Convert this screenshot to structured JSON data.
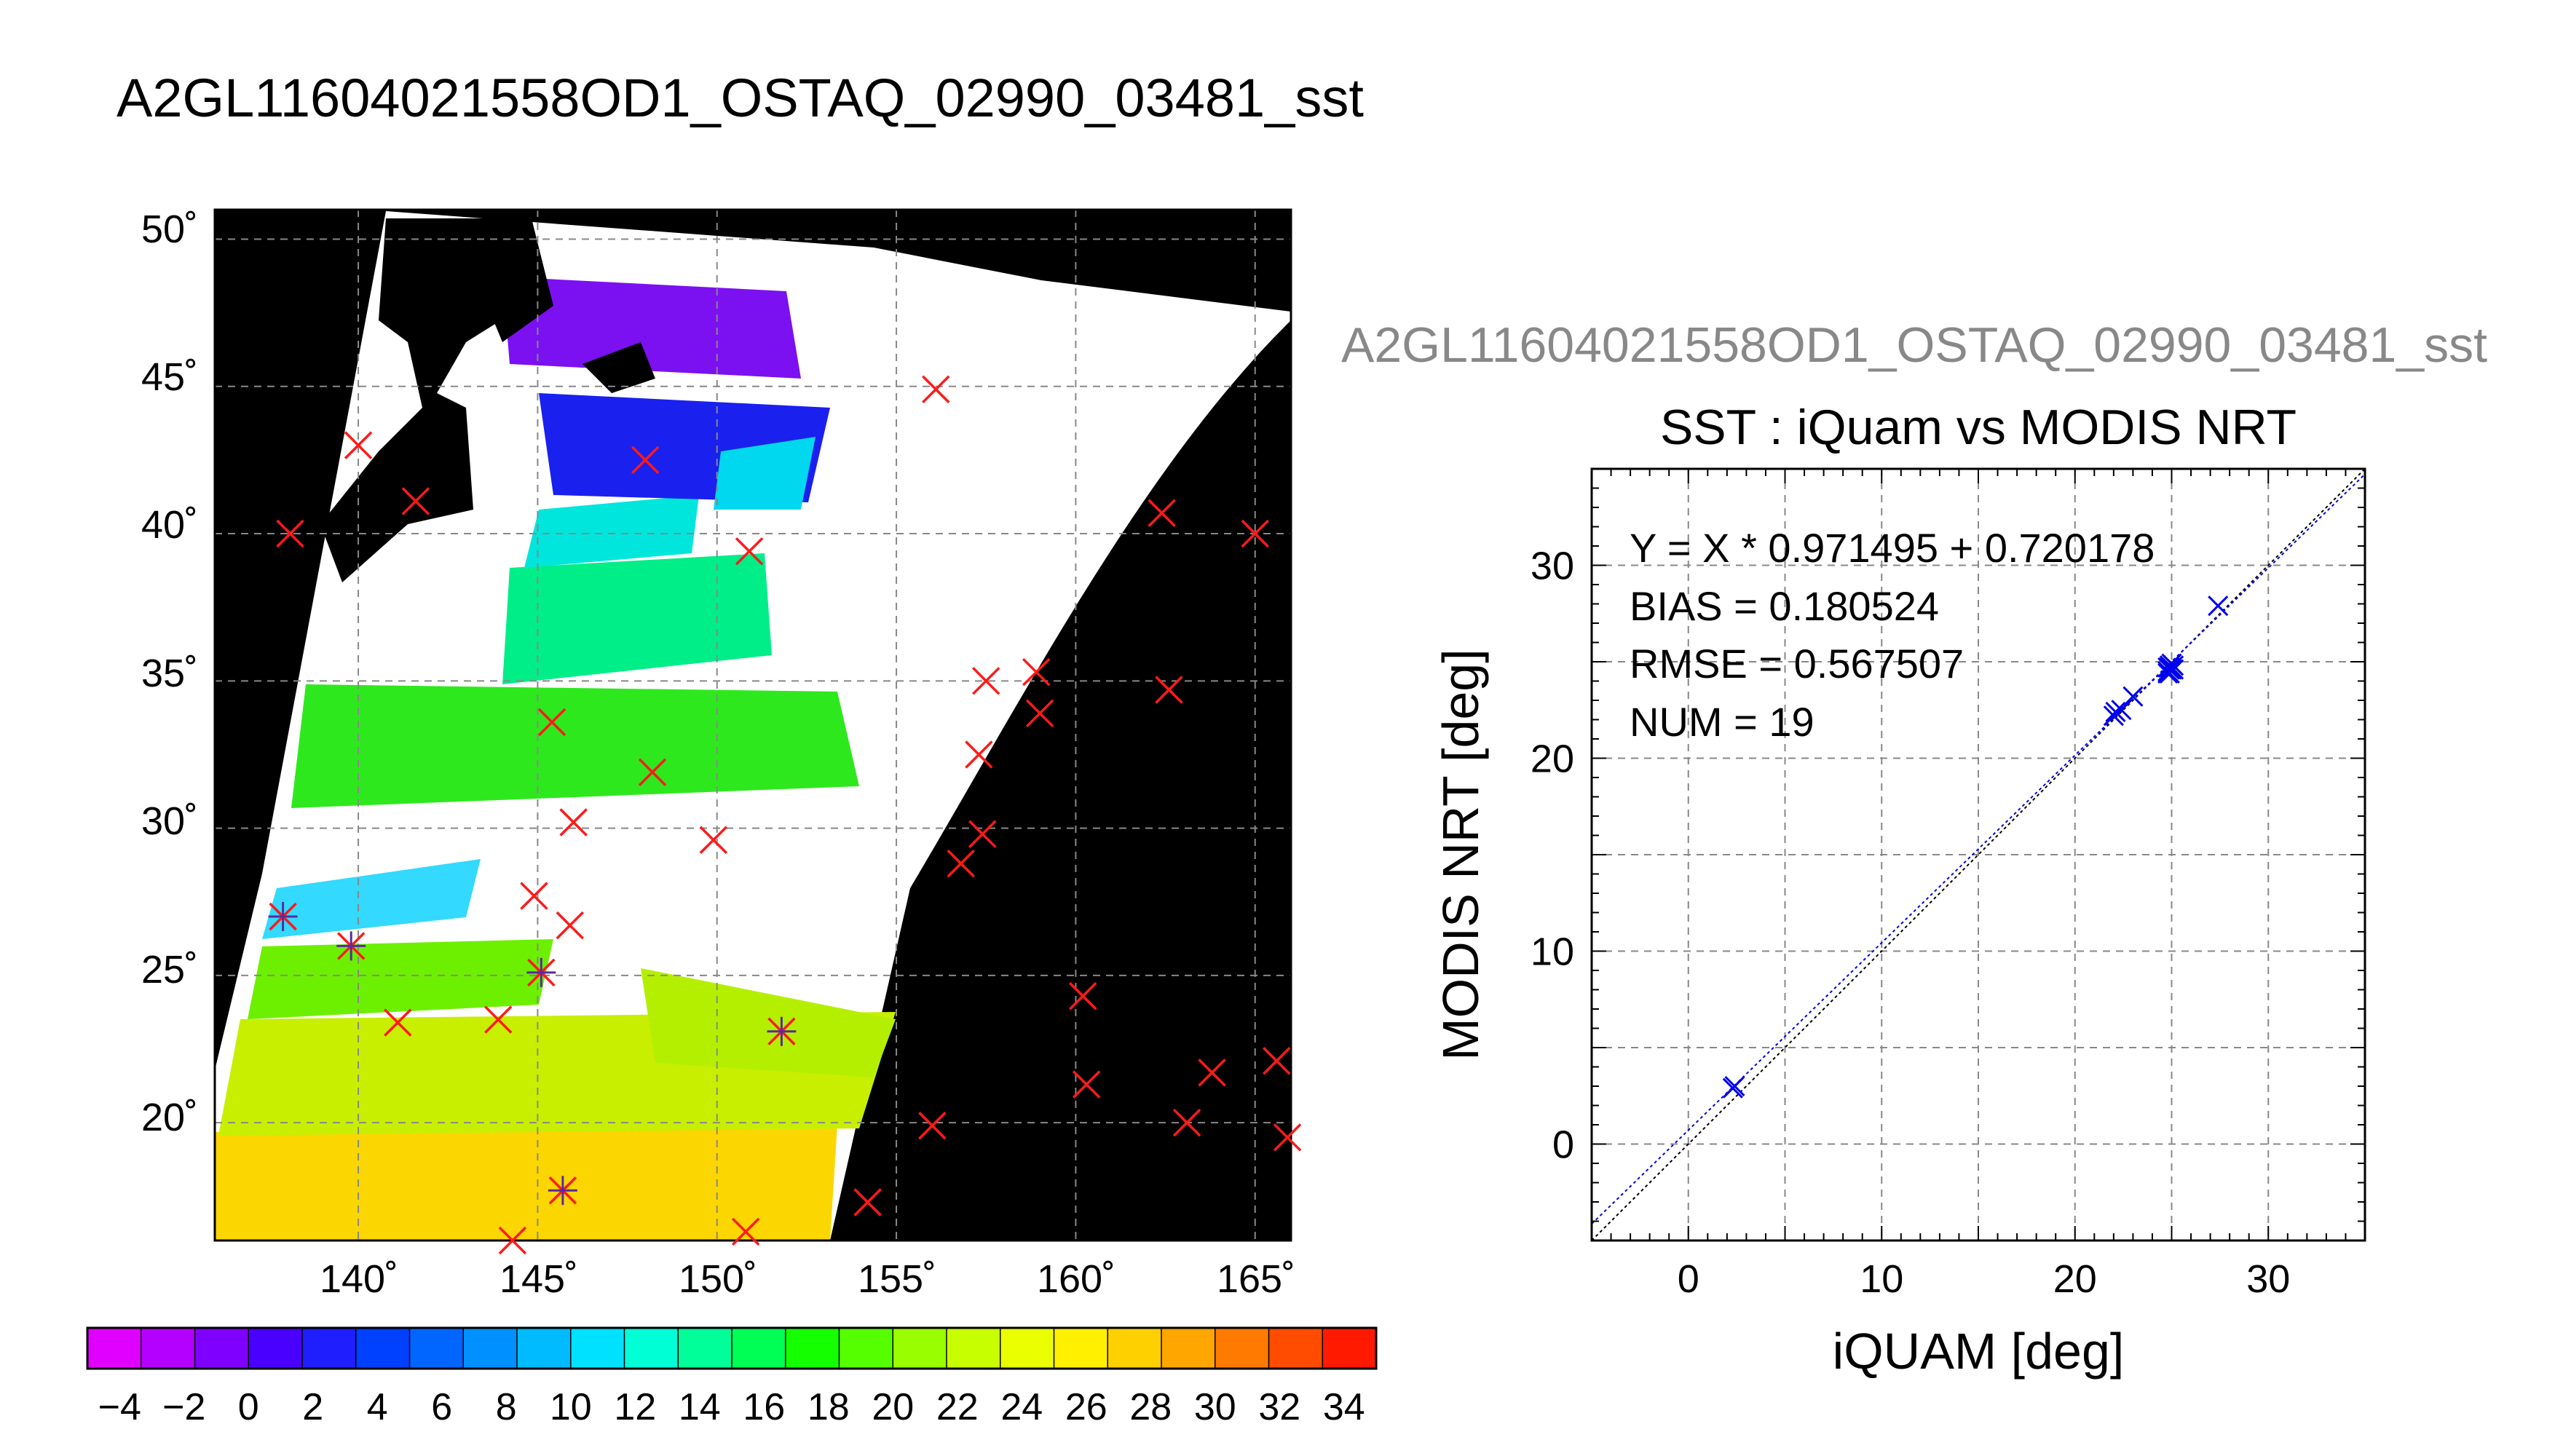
{
  "page_title": "A2GL11604021558OD1_OSTAQ_02990_03481_sst",
  "chart_data": [
    {
      "type": "map",
      "title": "A2GL11604021558OD1_OSTAQ_02990_03481_sst",
      "lon_range": [
        136,
        166
      ],
      "lat_range": [
        16,
        51
      ],
      "lon_ticks": [
        140,
        145,
        150,
        155,
        160,
        165
      ],
      "lat_ticks": [
        20,
        25,
        30,
        35,
        40,
        45,
        50
      ],
      "lon_tick_labels": [
        "140˚",
        "145˚",
        "150˚",
        "155˚",
        "160˚",
        "165˚"
      ],
      "lat_tick_labels": [
        "20˚",
        "25˚",
        "30˚",
        "35˚",
        "40˚",
        "45˚",
        "50˚"
      ],
      "grid": true,
      "colorbar": {
        "min": -5,
        "max": 35,
        "labels": [
          "−4",
          "−2",
          "0",
          "2",
          "4",
          "6",
          "8",
          "10",
          "12",
          "14",
          "16",
          "18",
          "20",
          "22",
          "24",
          "26",
          "28",
          "30",
          "32",
          "34"
        ],
        "label_values": [
          -4,
          -2,
          0,
          2,
          4,
          6,
          8,
          10,
          12,
          14,
          16,
          18,
          20,
          22,
          24,
          26,
          28,
          30,
          32,
          34
        ],
        "colors": [
          "#e000ff",
          "#b300ff",
          "#8000ff",
          "#4a00ff",
          "#1e1eff",
          "#0040ff",
          "#0066ff",
          "#0090ff",
          "#00bbff",
          "#00e0ff",
          "#00ffd5",
          "#00ff99",
          "#00ff55",
          "#14ff00",
          "#55ff00",
          "#99ff00",
          "#c8ff00",
          "#eaff00",
          "#fff000",
          "#ffd000",
          "#ffa600",
          "#ff7a00",
          "#ff4c00",
          "#ff1a00"
        ]
      },
      "iquam_points": [
        {
          "lon": 140.0,
          "lat": 43.0
        },
        {
          "lon": 141.6,
          "lat": 41.1
        },
        {
          "lon": 138.1,
          "lat": 40.0
        },
        {
          "lon": 156.1,
          "lat": 44.9
        },
        {
          "lon": 148.0,
          "lat": 42.5
        },
        {
          "lon": 150.9,
          "lat": 39.4
        },
        {
          "lon": 162.4,
          "lat": 40.7
        },
        {
          "lon": 165.0,
          "lat": 40.0
        },
        {
          "lon": 157.5,
          "lat": 35.0
        },
        {
          "lon": 158.9,
          "lat": 35.3
        },
        {
          "lon": 159.0,
          "lat": 33.9
        },
        {
          "lon": 162.6,
          "lat": 34.7
        },
        {
          "lon": 145.4,
          "lat": 33.6
        },
        {
          "lon": 148.2,
          "lat": 31.9
        },
        {
          "lon": 157.3,
          "lat": 32.5
        },
        {
          "lon": 146.0,
          "lat": 30.2
        },
        {
          "lon": 149.9,
          "lat": 29.6
        },
        {
          "lon": 157.4,
          "lat": 29.8
        },
        {
          "lon": 156.8,
          "lat": 28.8
        },
        {
          "lon": 144.9,
          "lat": 27.7
        },
        {
          "lon": 145.9,
          "lat": 26.7
        },
        {
          "lon": 137.9,
          "lat": 27.0
        },
        {
          "lon": 139.8,
          "lat": 26.0
        },
        {
          "lon": 145.1,
          "lat": 25.1
        },
        {
          "lon": 160.2,
          "lat": 24.3
        },
        {
          "lon": 141.1,
          "lat": 23.4
        },
        {
          "lon": 143.9,
          "lat": 23.5
        },
        {
          "lon": 151.8,
          "lat": 23.1
        },
        {
          "lon": 160.3,
          "lat": 21.3
        },
        {
          "lon": 163.8,
          "lat": 21.7
        },
        {
          "lon": 165.6,
          "lat": 22.1
        },
        {
          "lon": 156.0,
          "lat": 19.9
        },
        {
          "lon": 163.1,
          "lat": 20.0
        },
        {
          "lon": 165.9,
          "lat": 19.5
        },
        {
          "lon": 145.7,
          "lat": 17.7
        },
        {
          "lon": 154.2,
          "lat": 17.3
        },
        {
          "lon": 150.8,
          "lat": 16.3
        },
        {
          "lon": 144.3,
          "lat": 16.0
        }
      ],
      "matchup_points": [
        {
          "lon": 137.9,
          "lat": 27.0
        },
        {
          "lon": 139.8,
          "lat": 26.0
        },
        {
          "lon": 145.1,
          "lat": 25.1
        },
        {
          "lon": 151.8,
          "lat": 23.1
        },
        {
          "lon": 145.7,
          "lat": 17.7
        }
      ]
    },
    {
      "type": "scatter",
      "figure_title": "A2GL11604021558OD1_OSTAQ_02990_03481_sst",
      "title": "SST : iQuam vs MODIS NRT",
      "xlabel": "iQUAM [deg]",
      "ylabel": "MODIS NRT [deg]",
      "xlim": [
        -5,
        35
      ],
      "ylim": [
        -5,
        35
      ],
      "xticks": [
        0,
        10,
        20,
        30
      ],
      "yticks": [
        0,
        10,
        20,
        30
      ],
      "grid_step": 5,
      "stats": [
        "Y = X * 0.971495 + 0.720178",
        "BIAS = 0.180524",
        "RMSE = 0.567507",
        "NUM = 19"
      ],
      "fit": {
        "slope": 0.971495,
        "intercept": 0.720178
      },
      "series": [
        {
          "marker": "x",
          "color": "#0000ee",
          "points": [
            {
              "x": 2.3,
              "y": 2.9
            },
            {
              "x": 2.4,
              "y": 3.0
            },
            {
              "x": 22.0,
              "y": 22.2
            },
            {
              "x": 22.1,
              "y": 22.4
            },
            {
              "x": 22.4,
              "y": 22.5
            },
            {
              "x": 23.0,
              "y": 23.2
            },
            {
              "x": 24.8,
              "y": 24.5
            },
            {
              "x": 24.9,
              "y": 24.8
            },
            {
              "x": 25.0,
              "y": 24.6
            },
            {
              "x": 24.9,
              "y": 24.4
            },
            {
              "x": 25.0,
              "y": 24.9
            },
            {
              "x": 24.8,
              "y": 24.7
            },
            {
              "x": 25.1,
              "y": 24.6
            },
            {
              "x": 24.9,
              "y": 24.6
            },
            {
              "x": 25.0,
              "y": 24.7
            },
            {
              "x": 24.8,
              "y": 24.4
            },
            {
              "x": 25.1,
              "y": 24.8
            },
            {
              "x": 24.9,
              "y": 24.7
            },
            {
              "x": 27.4,
              "y": 27.9
            }
          ]
        }
      ]
    }
  ]
}
